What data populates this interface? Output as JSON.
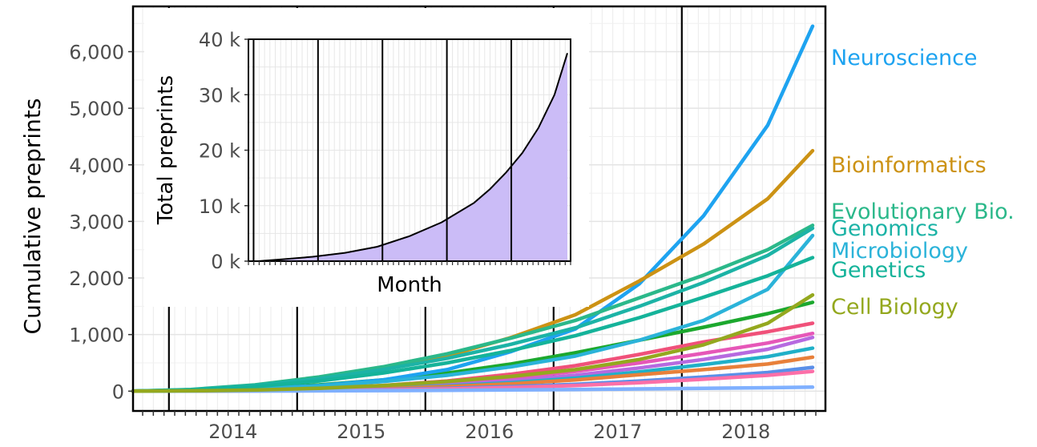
{
  "chart_data": [
    {
      "type": "line",
      "ylabel": "Cumulative preprints",
      "xlabel": "",
      "x_ticks": [
        "2014",
        "2015",
        "2016",
        "2017",
        "2018"
      ],
      "y_ticks": [
        "0",
        "1,000",
        "2,000",
        "3,000",
        "4,000",
        "5,000",
        "6,000"
      ],
      "xlim": [
        2013.3,
        2018.7
      ],
      "ylim": [
        -350,
        6800
      ],
      "vlines": [
        2013.58,
        2014.58,
        2015.58,
        2016.58,
        2017.58
      ],
      "grid": true,
      "x": [
        2013.3,
        2013.75,
        2014.25,
        2014.75,
        2015.25,
        2015.75,
        2016.25,
        2016.75,
        2017.25,
        2017.75,
        2018.25,
        2018.6
      ],
      "series": [
        {
          "name": "Neuroscience",
          "color": "#1ea3f0",
          "label": true,
          "values": [
            0,
            10,
            40,
            100,
            200,
            380,
            700,
            1100,
            1900,
            3100,
            4700,
            6450
          ]
        },
        {
          "name": "Bioinformatics",
          "color": "#cc9214",
          "label": true,
          "values": [
            0,
            20,
            80,
            200,
            380,
            620,
            950,
            1350,
            1950,
            2600,
            3400,
            4250
          ]
        },
        {
          "name": "Evolutionary Bio.",
          "color": "#2bb88a",
          "label": true,
          "values": [
            0,
            30,
            110,
            250,
            430,
            660,
            940,
            1250,
            1650,
            2050,
            2500,
            2930
          ]
        },
        {
          "name": "Genomics",
          "color": "#1cb3a6",
          "label": true,
          "values": [
            0,
            25,
            100,
            220,
            380,
            580,
            830,
            1120,
            1500,
            1920,
            2400,
            2880
          ]
        },
        {
          "name": "Microbiology",
          "color": "#2bb3d9",
          "label": true,
          "values": [
            0,
            10,
            40,
            90,
            170,
            280,
            430,
            620,
            900,
            1250,
            1800,
            2750
          ]
        },
        {
          "name": "Genetics",
          "color": "#15b39a",
          "label": true,
          "values": [
            0,
            20,
            80,
            180,
            320,
            500,
            720,
            980,
            1300,
            1660,
            2040,
            2360
          ]
        },
        {
          "name": "Cell Biology",
          "color": "#94a81e",
          "label": true,
          "values": [
            0,
            5,
            20,
            50,
            100,
            170,
            260,
            380,
            560,
            820,
            1200,
            1700
          ]
        },
        {
          "name": "",
          "color": "#1ca82e",
          "label": false,
          "values": [
            0,
            15,
            50,
            110,
            200,
            320,
            480,
            680,
            900,
            1130,
            1370,
            1570
          ]
        },
        {
          "name": "",
          "color": "#f0517a",
          "label": false,
          "values": [
            0,
            5,
            20,
            50,
            100,
            180,
            300,
            450,
            650,
            870,
            1050,
            1200
          ]
        },
        {
          "name": "",
          "color": "#e657b8",
          "label": false,
          "values": [
            0,
            5,
            15,
            40,
            80,
            140,
            230,
            350,
            500,
            670,
            850,
            1020
          ]
        },
        {
          "name": "",
          "color": "#b66ae0",
          "label": false,
          "values": [
            0,
            4,
            12,
            30,
            60,
            110,
            180,
            280,
            410,
            560,
            740,
            950
          ]
        },
        {
          "name": "",
          "color": "#20b0c8",
          "label": false,
          "values": [
            0,
            3,
            10,
            25,
            50,
            90,
            150,
            230,
            340,
            470,
            610,
            760
          ]
        },
        {
          "name": "",
          "color": "#e8803a",
          "label": false,
          "values": [
            0,
            3,
            10,
            25,
            45,
            80,
            130,
            200,
            290,
            380,
            480,
            600
          ]
        },
        {
          "name": "",
          "color": "#5a8fe8",
          "label": false,
          "values": [
            0,
            2,
            6,
            15,
            30,
            50,
            80,
            120,
            180,
            250,
            330,
            420
          ]
        },
        {
          "name": "",
          "color": "#fc6fa8",
          "label": false,
          "values": [
            0,
            2,
            5,
            12,
            22,
            40,
            65,
            100,
            150,
            210,
            280,
            350
          ]
        },
        {
          "name": "",
          "color": "#7fb0ff",
          "label": false,
          "values": [
            0,
            1,
            3,
            6,
            10,
            15,
            22,
            30,
            40,
            50,
            60,
            70
          ]
        }
      ]
    },
    {
      "type": "area",
      "ylabel": "Total preprints",
      "xlabel": "Month",
      "y_ticks": [
        "0 k",
        "10 k",
        "20 k",
        "30 k",
        "40 k"
      ],
      "y_tick_values": [
        0,
        10000,
        20000,
        30000,
        40000
      ],
      "xlim": [
        2013.75,
        2018.75
      ],
      "ylim": [
        0,
        40000
      ],
      "vlines": [
        2013.83,
        2014.83,
        2015.83,
        2016.83,
        2017.83
      ],
      "grid": true,
      "fill_color": "#cbbcf7",
      "x": [
        2013.9,
        2014.25,
        2014.75,
        2015.25,
        2015.75,
        2016.25,
        2016.75,
        2017.25,
        2017.5,
        2017.75,
        2018.0,
        2018.25,
        2018.5,
        2018.7
      ],
      "values": [
        0,
        300,
        800,
        1500,
        2600,
        4500,
        7000,
        10500,
        13000,
        16000,
        19500,
        24000,
        30000,
        37500
      ]
    }
  ]
}
